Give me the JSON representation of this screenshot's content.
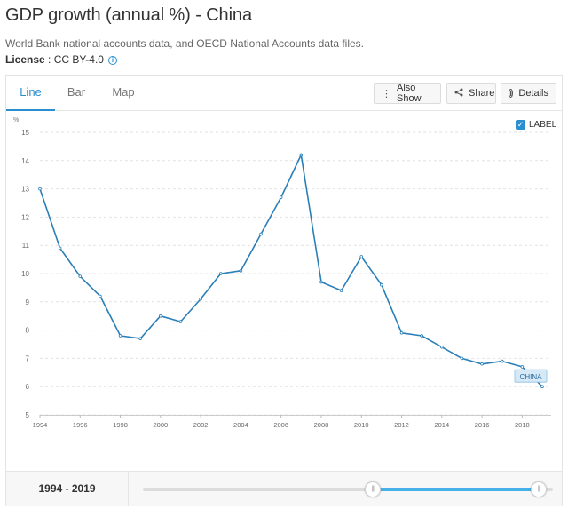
{
  "header": {
    "title": "GDP growth (annual %) - China",
    "source": "World Bank national accounts data, and OECD National Accounts data files.",
    "license_label": "License",
    "license_value": " : CC BY-4.0",
    "license_icon": "info-icon"
  },
  "tabs": [
    {
      "label": "Line",
      "active": true
    },
    {
      "label": "Bar",
      "active": false
    },
    {
      "label": "Map",
      "active": false
    }
  ],
  "toolbar": {
    "also_show_label": "Also Show",
    "also_show_icon": "vertical-dots-icon",
    "share_label": "Share",
    "share_icon": "share-icon",
    "details_label": "Details",
    "details_icon": "info-icon"
  },
  "label_toggle": {
    "label": "LABEL",
    "checked": true
  },
  "colors": {
    "accent": "#2a8fd0",
    "line": "#2a7fb8",
    "slider_fill": "#45b1e8"
  },
  "chart_data": {
    "type": "line",
    "ylabel": "%",
    "ylim": [
      5,
      15
    ],
    "yticks": [
      5,
      6,
      7,
      8,
      9,
      10,
      11,
      12,
      13,
      14,
      15
    ],
    "xlim": [
      1994,
      2019
    ],
    "xticks": [
      1994,
      1996,
      1998,
      2000,
      2002,
      2004,
      2006,
      2008,
      2010,
      2012,
      2014,
      2016,
      2018
    ],
    "grid": true,
    "series": [
      {
        "name": "CHINA",
        "x": [
          1994,
          1995,
          1996,
          1997,
          1998,
          1999,
          2000,
          2001,
          2002,
          2003,
          2004,
          2005,
          2006,
          2007,
          2008,
          2009,
          2010,
          2011,
          2012,
          2013,
          2014,
          2015,
          2016,
          2017,
          2018,
          2019
        ],
        "values": [
          13.0,
          10.9,
          9.9,
          9.2,
          7.8,
          7.7,
          8.5,
          8.3,
          9.1,
          10.0,
          10.1,
          11.4,
          12.7,
          14.2,
          9.7,
          9.4,
          10.6,
          9.6,
          7.9,
          7.8,
          7.4,
          7.0,
          6.8,
          6.9,
          6.7,
          6.0
        ]
      }
    ]
  },
  "footer": {
    "range_label": "1994 - 2019",
    "slider_start": 0.56,
    "slider_end": 0.965
  }
}
